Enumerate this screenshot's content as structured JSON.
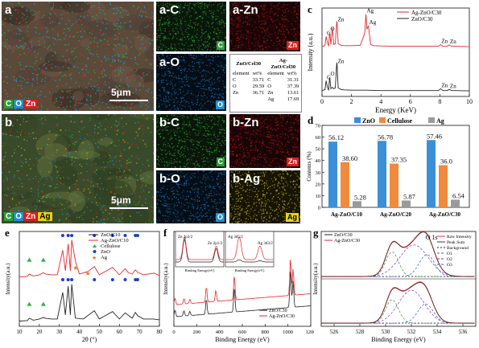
{
  "panel_a": {
    "letter": "a",
    "scale": "5μm",
    "legend": [
      {
        "text": "C",
        "bg": "#2e9e3a",
        "fg": "#ffffff"
      },
      {
        "text": "O",
        "bg": "#1e90d0",
        "fg": "#ffffff"
      },
      {
        "text": "Zn",
        "bg": "#d81f1f",
        "fg": "#ffffff"
      }
    ],
    "maps": [
      {
        "label": "a-C",
        "chip": "C",
        "tint": "#29b23a",
        "chip_bg": "#2e9e3a"
      },
      {
        "label": "a-Zn",
        "chip": "Zn",
        "tint": "#c0181a",
        "chip_bg": "#d81f1f"
      },
      {
        "label": "a-O",
        "chip": "O",
        "tint": "#1a7fc4",
        "chip_bg": "#1e90d0"
      }
    ],
    "eds_table": {
      "group_headers": [
        "ZnO/Cel30",
        "Ag-ZnO/Cel30"
      ],
      "col_headers": [
        "element",
        "wt%",
        "element",
        "wt%"
      ],
      "rows": [
        [
          "C",
          "33.71",
          "C",
          "31.31"
        ],
        [
          "O",
          "29.59",
          "O",
          "37.39"
        ],
        [
          "Zn",
          "36.71",
          "Zn",
          "13.61"
        ],
        [
          "",
          "",
          "Ag",
          "17.69"
        ]
      ]
    }
  },
  "panel_b": {
    "letter": "b",
    "scale": "5μm",
    "legend": [
      {
        "text": "C",
        "bg": "#2e9e3a",
        "fg": "#ffffff"
      },
      {
        "text": "O",
        "bg": "#1e90d0",
        "fg": "#ffffff"
      },
      {
        "text": "Zn",
        "bg": "#d81f1f",
        "fg": "#ffffff"
      },
      {
        "text": "Ag",
        "bg": "#e6d21a",
        "fg": "#000000"
      }
    ],
    "maps": [
      {
        "label": "b-C",
        "chip": "C",
        "tint": "#29b23a",
        "chip_bg": "#2e9e3a"
      },
      {
        "label": "b-Zn",
        "chip": "Zn",
        "tint": "#c0181a",
        "chip_bg": "#d81f1f"
      },
      {
        "label": "b-O",
        "chip": "O",
        "tint": "#1a7fc4",
        "chip_bg": "#1e90d0"
      },
      {
        "label": "b-Ag",
        "chip": "Ag",
        "tint": "#d9c21a",
        "chip_bg": "#e6d21a"
      }
    ]
  },
  "chart_data": [
    {
      "id": "c",
      "type": "line",
      "letter": "c",
      "xlabel": "Energy (KeV)",
      "ylabel": "Intensity (a.u.)",
      "xlim": [
        0,
        10
      ],
      "xticks": [
        0,
        2,
        4,
        6,
        8,
        10
      ],
      "series": [
        {
          "name": "Ag-ZnO/C30",
          "color": "#e8262a",
          "offset": 1,
          "x": [
            0.0,
            0.2,
            0.28,
            0.38,
            0.45,
            0.52,
            0.6,
            0.7,
            0.8,
            0.9,
            1.0,
            1.02,
            1.1,
            1.3,
            1.5,
            2.0,
            2.6,
            2.9,
            2.98,
            3.05,
            3.15,
            3.3,
            3.5,
            4,
            5,
            6,
            7,
            7.9,
            8.05,
            8.2,
            8.5,
            8.63,
            8.8,
            9,
            10
          ],
          "y": [
            0.02,
            0.06,
            0.3,
            0.1,
            0.05,
            0.42,
            0.08,
            0.55,
            0.08,
            0.1,
            0.72,
            0.68,
            0.1,
            0.06,
            0.05,
            0.05,
            0.06,
            0.4,
            0.92,
            0.5,
            0.6,
            0.08,
            0.05,
            0.04,
            0.03,
            0.03,
            0.03,
            0.03,
            0.08,
            0.03,
            0.03,
            0.07,
            0.03,
            0.03,
            0.02
          ]
        },
        {
          "name": "ZnO/C30",
          "color": "#222222",
          "offset": 0,
          "x": [
            0.0,
            0.2,
            0.28,
            0.38,
            0.45,
            0.52,
            0.6,
            0.7,
            0.8,
            0.9,
            1.0,
            1.02,
            1.1,
            1.3,
            1.5,
            2,
            3,
            4,
            5,
            6,
            7,
            7.9,
            8.05,
            8.2,
            8.5,
            8.63,
            8.8,
            9,
            10
          ],
          "y": [
            0.02,
            0.06,
            0.3,
            0.1,
            0.05,
            0.4,
            0.08,
            0.12,
            0.08,
            0.1,
            0.8,
            0.75,
            0.1,
            0.06,
            0.05,
            0.04,
            0.04,
            0.03,
            0.03,
            0.03,
            0.03,
            0.03,
            0.08,
            0.03,
            0.03,
            0.06,
            0.03,
            0.03,
            0.02
          ]
        }
      ],
      "annotations_top": [
        {
          "x": 0.28,
          "t": "C"
        },
        {
          "x": 0.52,
          "t": "O"
        },
        {
          "x": 1.02,
          "t": "Zn"
        },
        {
          "x": 2.98,
          "t": "Ag"
        },
        {
          "x": 3.15,
          "t": "Ag"
        },
        {
          "x": 8.05,
          "t": "Zn"
        },
        {
          "x": 8.63,
          "t": "Zn"
        }
      ],
      "annotations_bottom": [
        {
          "x": 0.28,
          "t": "C"
        },
        {
          "x": 0.52,
          "t": "O"
        },
        {
          "x": 1.02,
          "t": "Zn"
        },
        {
          "x": 8.05,
          "t": "Zn"
        },
        {
          "x": 8.63,
          "t": "Zn"
        }
      ]
    },
    {
      "id": "d",
      "type": "bar",
      "letter": "d",
      "ylabel": "Contents (%)",
      "ylim": [
        0,
        70
      ],
      "yticks": [
        0,
        10,
        20,
        30,
        40,
        50,
        60,
        70
      ],
      "categories": [
        "Ag-ZnO/C10",
        "Ag-ZnO/C20",
        "Ag-ZnO/C30"
      ],
      "series": [
        {
          "name": "ZnO",
          "color": "#3b8fd6",
          "values": [
            56.12,
            56.78,
            57.46
          ]
        },
        {
          "name": "Cellulose",
          "color": "#f08a3c",
          "values": [
            38.6,
            37.35,
            36.0
          ]
        },
        {
          "name": "Ag",
          "color": "#9a9a9a",
          "values": [
            5.28,
            5.87,
            6.54
          ]
        }
      ],
      "data_labels": [
        [
          "56.12",
          "38.60",
          "5.28"
        ],
        [
          "56.78",
          "37.35",
          "5.87"
        ],
        [
          "57.46",
          "36.0",
          "6.54"
        ]
      ]
    },
    {
      "id": "e",
      "type": "line",
      "letter": "e",
      "xlabel": "2θ (°)",
      "ylabel": "Intensity(a.u.)",
      "xlim": [
        10,
        80
      ],
      "xticks": [
        10,
        20,
        30,
        40,
        50,
        60,
        70,
        80
      ],
      "legend": [
        {
          "name": "ZnO/C10",
          "color": "#222222"
        },
        {
          "name": "Ag-ZnO/C10",
          "color": "#e8262a"
        },
        {
          "name": "Cellulose",
          "color": "#27b43c",
          "marker": "triangle"
        },
        {
          "name": "ZnO",
          "color": "#1b3fc8",
          "marker": "circle"
        },
        {
          "name": "Ag",
          "color": "#e07a1a",
          "marker": "star"
        }
      ],
      "series": [
        {
          "name": "ZnO/C10",
          "color": "#222222",
          "offset": 0,
          "x": [
            10,
            14,
            15,
            17,
            20,
            22,
            23,
            26,
            29,
            31.7,
            33,
            34.4,
            35.5,
            36.2,
            38,
            42,
            47.5,
            50,
            56.6,
            60,
            62.9,
            66.4,
            68,
            69.1,
            72,
            77,
            80
          ],
          "y": [
            0.05,
            0.06,
            0.12,
            0.07,
            0.1,
            0.14,
            0.12,
            0.1,
            0.1,
            0.75,
            0.2,
            0.9,
            0.2,
            0.95,
            0.12,
            0.1,
            0.3,
            0.1,
            0.28,
            0.1,
            0.25,
            0.12,
            0.26,
            0.18,
            0.1,
            0.1,
            0.08
          ]
        },
        {
          "name": "Ag-ZnO/C10",
          "color": "#e8262a",
          "offset": 1,
          "x": [
            10,
            14,
            15,
            17,
            20,
            22,
            23,
            26,
            29,
            31.7,
            33,
            34.4,
            35.5,
            36.2,
            38.1,
            40,
            44.3,
            47.5,
            50,
            56.6,
            60,
            62.9,
            64.5,
            66.4,
            68,
            69.1,
            72,
            77.4,
            80
          ],
          "y": [
            0.05,
            0.06,
            0.12,
            0.07,
            0.1,
            0.15,
            0.12,
            0.1,
            0.1,
            0.7,
            0.2,
            0.85,
            0.2,
            0.95,
            0.42,
            0.12,
            0.18,
            0.3,
            0.1,
            0.28,
            0.1,
            0.25,
            0.15,
            0.12,
            0.22,
            0.16,
            0.1,
            0.14,
            0.08
          ]
        }
      ]
    },
    {
      "id": "f",
      "type": "line",
      "letter": "f",
      "xlabel": "Binding Energy (eV)",
      "ylabel": "Intensity(a.u.)",
      "xlim": [
        0,
        1200
      ],
      "xticks": [
        0,
        200,
        400,
        600,
        800,
        1000,
        1200
      ],
      "series": [
        {
          "name": "ZnO/C30",
          "color": "#222222"
        },
        {
          "name": "Ag-ZnO/C30",
          "color": "#e8262a"
        }
      ],
      "insets": [
        {
          "title": "Zn 2p",
          "xlabel": "Binding Energy(eV)",
          "xlim": [
            1015,
            1050
          ],
          "xticks": [
            1020,
            1030,
            1040,
            1050
          ],
          "peaks": [
            "Zn 2p3/2",
            "Zn 2p1/2"
          ]
        },
        {
          "title": "Ag 3d",
          "xlabel": "Binding Energy(eV)",
          "xlim": [
            364,
            378
          ],
          "xticks": [
            366,
            368,
            370,
            372,
            374,
            376
          ],
          "peaks": [
            "Ag 3d5/2",
            "Ag 3d3/2"
          ]
        }
      ]
    },
    {
      "id": "g",
      "type": "line",
      "letter": "g",
      "xlabel": "Binding Energy (eV)",
      "ylabel": "Intensity(a.u.)",
      "xlim": [
        525,
        537
      ],
      "xticks": [
        526,
        528,
        530,
        532,
        534,
        536
      ],
      "peak_label": "O 1s",
      "legend_left": [
        {
          "name": "ZnO/C30",
          "color": "#222222"
        },
        {
          "name": "Ag-ZnO/C30",
          "color": "#e8262a"
        }
      ],
      "legend_right": [
        {
          "name": "Raw Intensity",
          "color": "#e8262a",
          "dash": ""
        },
        {
          "name": "Peak Sum",
          "color": "#222222",
          "dash": ""
        },
        {
          "name": "Background",
          "color": "#222222",
          "dash": "2,2"
        },
        {
          "name": "O1",
          "color": "#3a8a3a",
          "dash": "3,2"
        },
        {
          "name": "O2",
          "color": "#7a3ab0",
          "dash": "3,2"
        },
        {
          "name": "O3",
          "color": "#3a5ad0",
          "dash": "3,2"
        }
      ]
    }
  ]
}
